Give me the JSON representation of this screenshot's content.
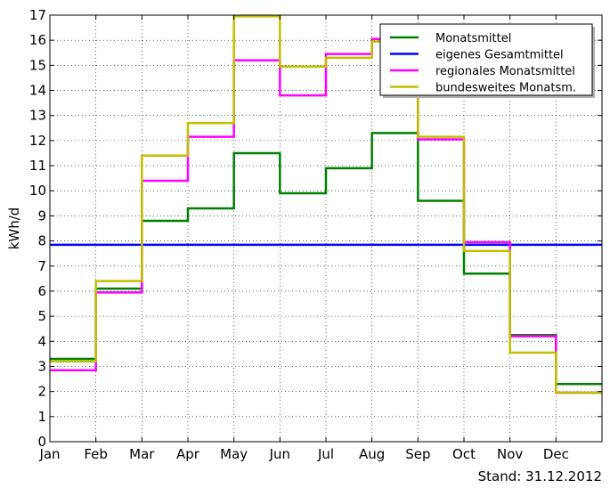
{
  "chart_data": {
    "type": "line",
    "step": "post",
    "categories": [
      "Jan",
      "Feb",
      "Mar",
      "Apr",
      "May",
      "Jun",
      "Jul",
      "Aug",
      "Sep",
      "Oct",
      "Nov",
      "Dec"
    ],
    "ylabel": "kWh/d",
    "ylim": [
      0,
      17
    ],
    "yticks": [
      "0",
      "1",
      "2",
      "3",
      "4",
      "5",
      "6",
      "7",
      "8",
      "9",
      "10",
      "11",
      "12",
      "13",
      "14",
      "15",
      "16",
      "17"
    ],
    "grid": true,
    "legend_position": "top-right",
    "series": [
      {
        "name": "Monatsmittel",
        "color": "#008000",
        "values": [
          3.3,
          6.1,
          8.8,
          9.3,
          11.5,
          9.9,
          10.9,
          12.3,
          9.6,
          6.7,
          4.25,
          2.3
        ]
      },
      {
        "name": "eigenes Gesamtmittel",
        "color": "#0000ff",
        "constant": 7.85
      },
      {
        "name": "regionales Monatsmittel",
        "color": "#ff00ff",
        "values": [
          2.85,
          5.95,
          10.4,
          12.15,
          15.2,
          13.8,
          15.45,
          16.05,
          12.05,
          7.95,
          4.2,
          1.95
        ]
      },
      {
        "name": "bundesweites Monatsm.",
        "color": "#bfbf00",
        "values": [
          3.2,
          6.4,
          11.4,
          12.7,
          16.95,
          14.95,
          15.3,
          15.95,
          12.15,
          7.6,
          3.55,
          1.95
        ]
      }
    ]
  },
  "footer": {
    "stand": "Stand: 31.12.2012"
  }
}
